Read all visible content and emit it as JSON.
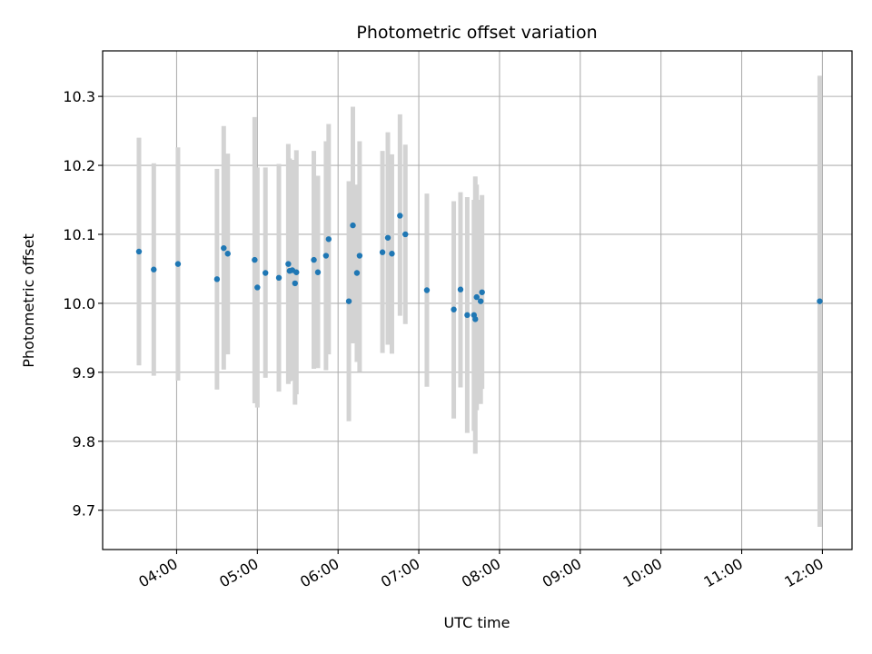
{
  "chart_data": {
    "type": "scatter",
    "title": "Photometric offset variation",
    "xlabel": "UTC time",
    "ylabel": "Photometric offset",
    "xlim": [
      "03:05",
      "12:22"
    ],
    "ylim": [
      9.643,
      10.366
    ],
    "x_ticks": [
      "04:00",
      "05:00",
      "06:00",
      "07:00",
      "08:00",
      "09:00",
      "10:00",
      "11:00",
      "12:00"
    ],
    "y_ticks": [
      9.7,
      9.8,
      9.9,
      10.0,
      10.1,
      10.2,
      10.3
    ],
    "y_tick_labels": [
      "9.7",
      "9.8",
      "9.9",
      "10.0",
      "10.1",
      "10.2",
      "10.3"
    ],
    "grid": true,
    "colors": {
      "point": "#1f77b4",
      "errorbar": "#d3d3d3",
      "grid": "#b0b0b0"
    },
    "series": [
      {
        "points": [
          {
            "x": "03:32",
            "y": 10.075,
            "lo": 9.91,
            "hi": 10.24
          },
          {
            "x": "03:43",
            "y": 10.049,
            "lo": 9.895,
            "hi": 10.203
          },
          {
            "x": "04:01",
            "y": 10.057,
            "lo": 9.888,
            "hi": 10.226
          },
          {
            "x": "04:30",
            "y": 10.035,
            "lo": 9.875,
            "hi": 10.195
          },
          {
            "x": "04:35",
            "y": 10.08,
            "lo": 9.904,
            "hi": 10.257
          },
          {
            "x": "04:38",
            "y": 10.072,
            "lo": 9.926,
            "hi": 10.217
          },
          {
            "x": "04:58",
            "y": 10.063,
            "lo": 9.855,
            "hi": 10.27
          },
          {
            "x": "05:00",
            "y": 10.023,
            "lo": 9.849,
            "hi": 10.197
          },
          {
            "x": "05:06",
            "y": 10.044,
            "lo": 9.892,
            "hi": 10.197
          },
          {
            "x": "05:16",
            "y": 10.037,
            "lo": 9.872,
            "hi": 10.202
          },
          {
            "x": "05:23",
            "y": 10.057,
            "lo": 9.883,
            "hi": 10.231
          },
          {
            "x": "05:24",
            "y": 10.047,
            "lo": 9.887,
            "hi": 10.21
          },
          {
            "x": "05:26",
            "y": 10.048,
            "lo": 9.888,
            "hi": 10.208
          },
          {
            "x": "05:28",
            "y": 10.029,
            "lo": 9.853,
            "hi": 10.205
          },
          {
            "x": "05:29",
            "y": 10.045,
            "lo": 9.868,
            "hi": 10.222
          },
          {
            "x": "05:42",
            "y": 10.063,
            "lo": 9.905,
            "hi": 10.221
          },
          {
            "x": "05:45",
            "y": 10.045,
            "lo": 9.906,
            "hi": 10.185
          },
          {
            "x": "05:51",
            "y": 10.069,
            "lo": 9.903,
            "hi": 10.235
          },
          {
            "x": "05:53",
            "y": 10.093,
            "lo": 9.926,
            "hi": 10.26
          },
          {
            "x": "06:08",
            "y": 10.003,
            "lo": 9.829,
            "hi": 10.177
          },
          {
            "x": "06:11",
            "y": 10.113,
            "lo": 9.942,
            "hi": 10.285
          },
          {
            "x": "06:14",
            "y": 10.044,
            "lo": 9.915,
            "hi": 10.172
          },
          {
            "x": "06:16",
            "y": 10.069,
            "lo": 9.901,
            "hi": 10.235
          },
          {
            "x": "06:33",
            "y": 10.074,
            "lo": 9.928,
            "hi": 10.221
          },
          {
            "x": "06:37",
            "y": 10.095,
            "lo": 9.94,
            "hi": 10.248
          },
          {
            "x": "06:40",
            "y": 10.072,
            "lo": 9.927,
            "hi": 10.216
          },
          {
            "x": "06:46",
            "y": 10.127,
            "lo": 9.982,
            "hi": 10.274
          },
          {
            "x": "06:50",
            "y": 10.1,
            "lo": 9.97,
            "hi": 10.23
          },
          {
            "x": "07:06",
            "y": 10.019,
            "lo": 9.879,
            "hi": 10.159
          },
          {
            "x": "07:26",
            "y": 9.991,
            "lo": 9.833,
            "hi": 10.148
          },
          {
            "x": "07:31",
            "y": 10.02,
            "lo": 9.878,
            "hi": 10.161
          },
          {
            "x": "07:36",
            "y": 9.983,
            "lo": 9.812,
            "hi": 10.154
          },
          {
            "x": "07:41",
            "y": 9.983,
            "lo": 9.815,
            "hi": 10.15
          },
          {
            "x": "07:42",
            "y": 9.977,
            "lo": 9.782,
            "hi": 10.184
          },
          {
            "x": "07:43",
            "y": 10.009,
            "lo": 9.845,
            "hi": 10.172
          },
          {
            "x": "07:46",
            "y": 10.003,
            "lo": 9.854,
            "hi": 10.15
          },
          {
            "x": "07:47",
            "y": 10.016,
            "lo": 9.876,
            "hi": 10.157
          },
          {
            "x": "11:58",
            "y": 10.003,
            "lo": 9.676,
            "hi": 10.33
          }
        ]
      }
    ]
  }
}
